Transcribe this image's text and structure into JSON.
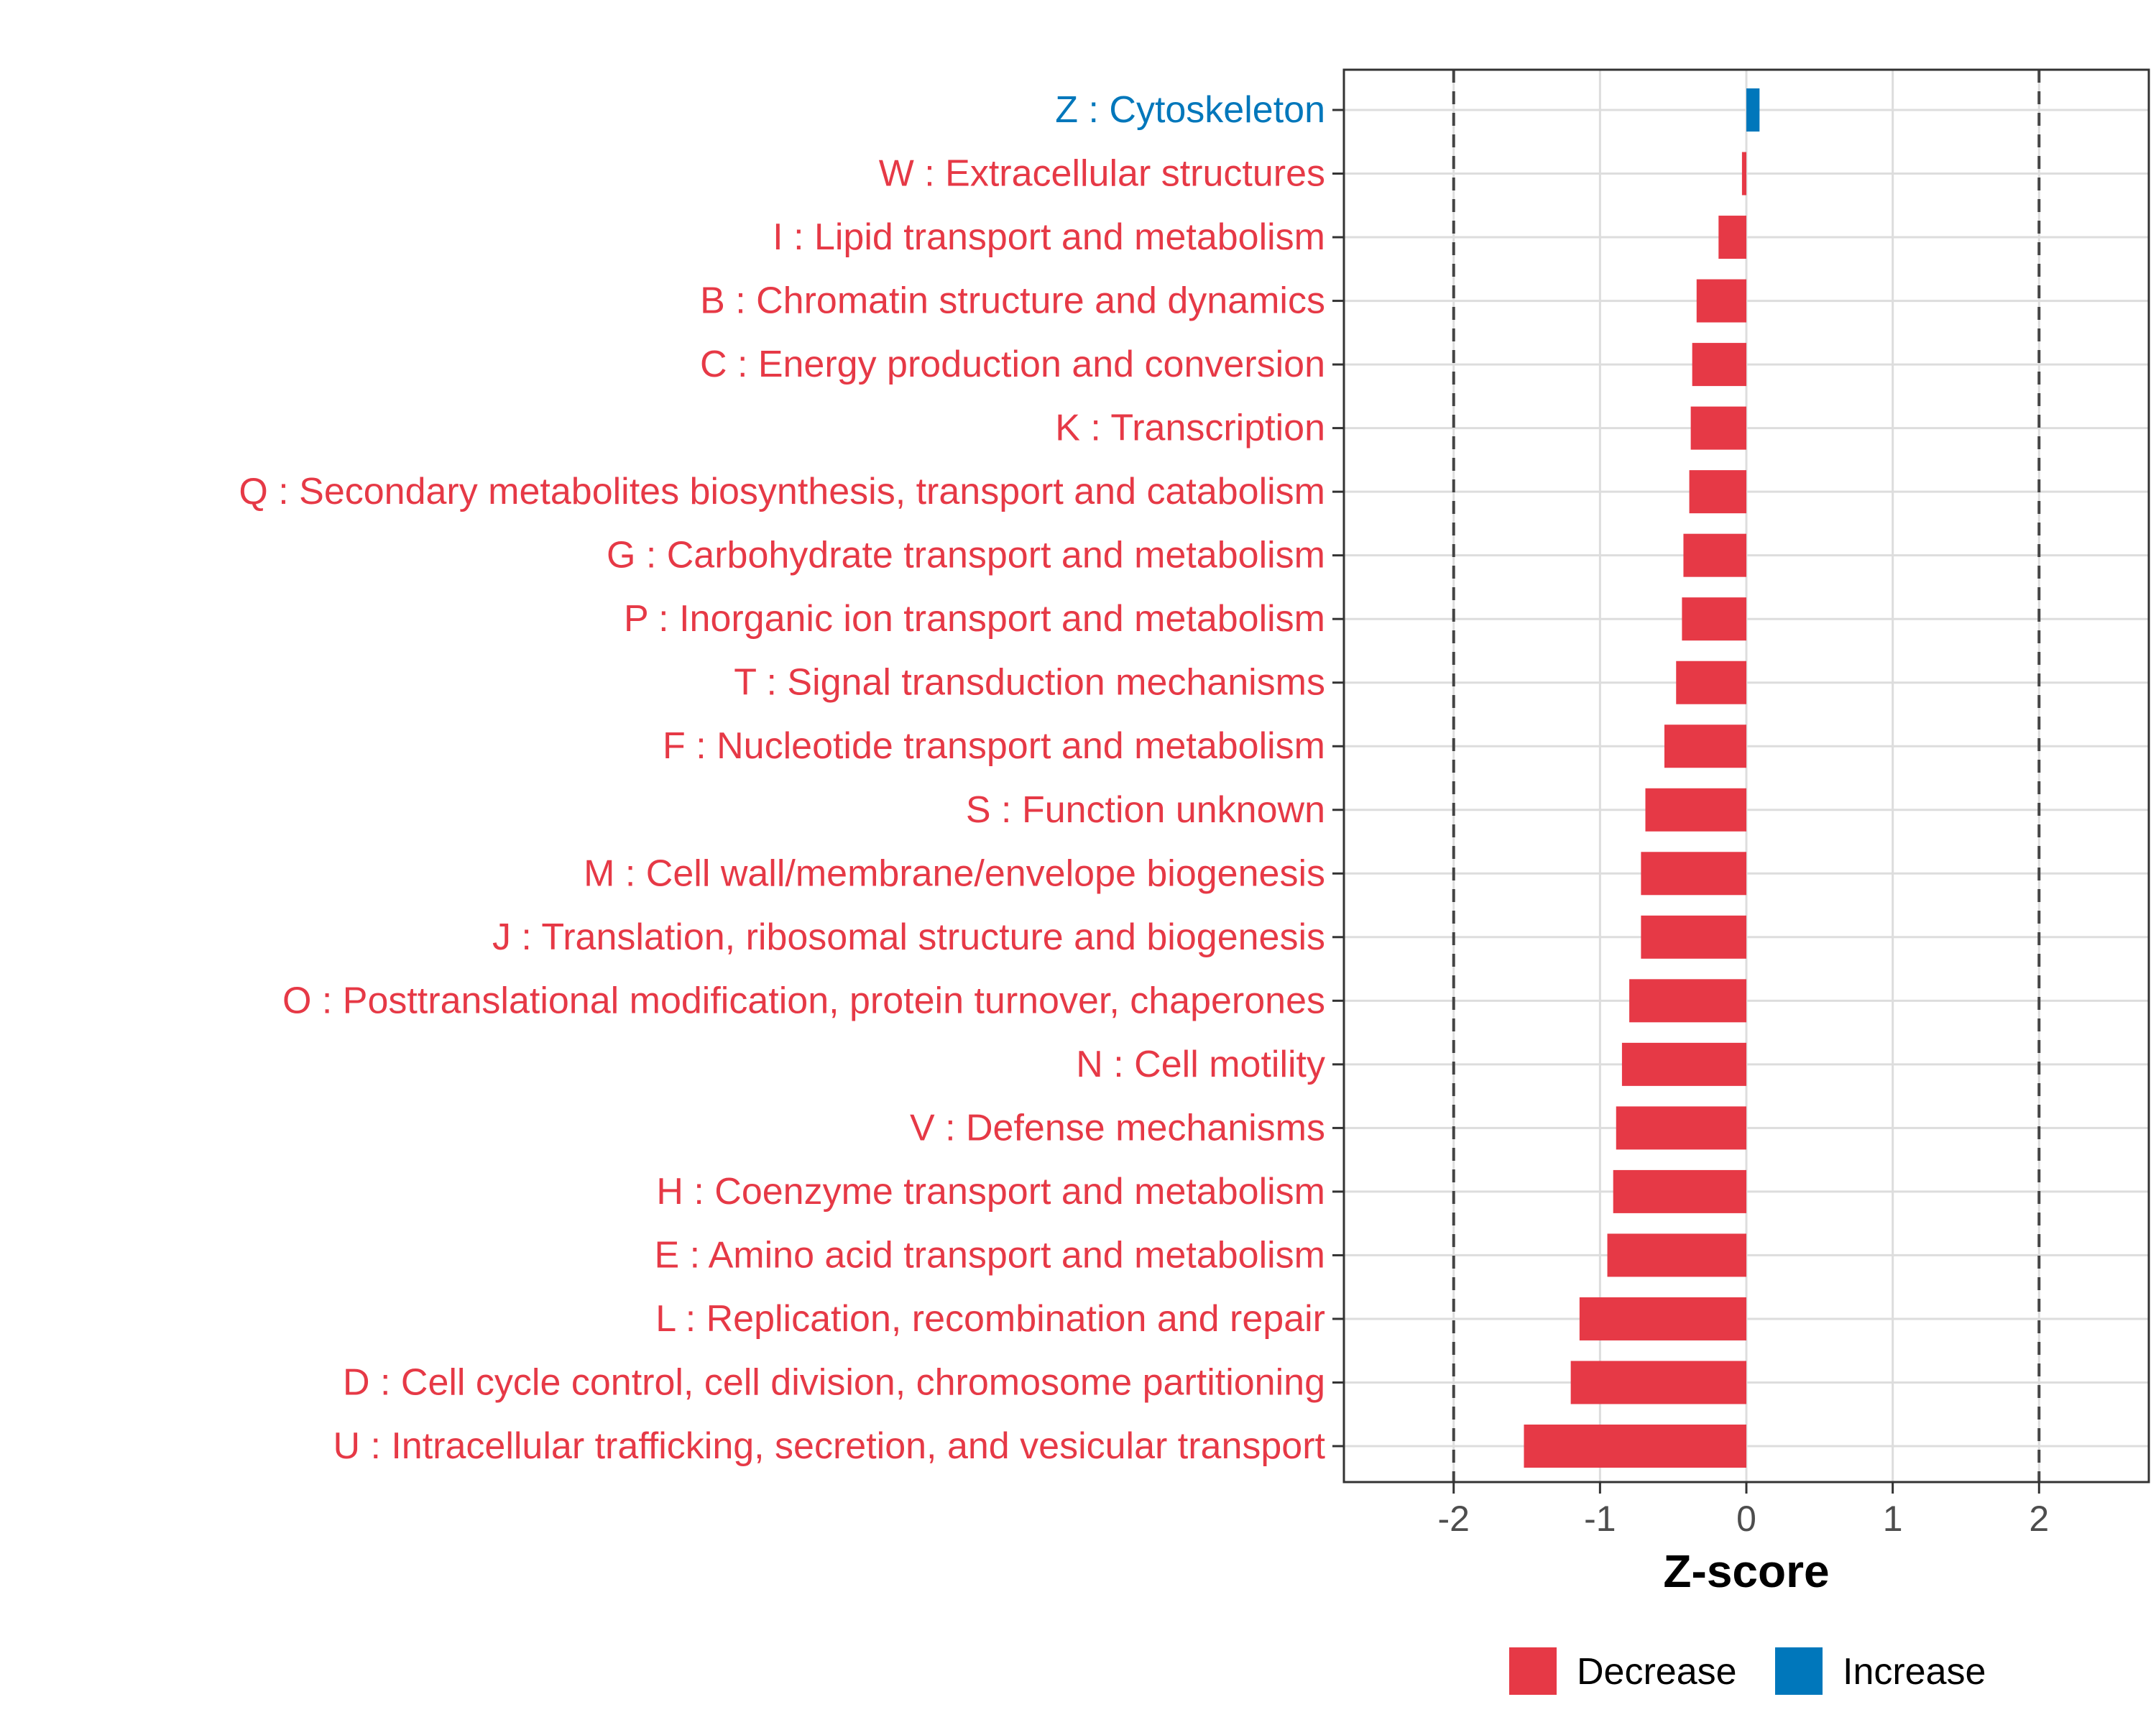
{
  "chart_data": {
    "type": "bar",
    "orientation": "horizontal",
    "xlabel": "Z-score",
    "ylabel": "",
    "xlim": [
      -2.75,
      2.75
    ],
    "xticks": [
      -2,
      -1,
      0,
      1,
      2
    ],
    "xtick_labels": [
      "-2",
      "-1",
      "0",
      "1",
      "2"
    ],
    "reference_lines": [
      -2,
      2
    ],
    "grid": true,
    "categories": [
      "Z : Cytoskeleton",
      "W : Extracellular structures",
      "I : Lipid transport and metabolism",
      "B : Chromatin structure and dynamics",
      "C : Energy production and conversion",
      "K : Transcription",
      "Q : Secondary metabolites biosynthesis, transport and catabolism",
      "G : Carbohydrate transport and metabolism",
      "P : Inorganic ion transport and metabolism",
      "T : Signal transduction mechanisms",
      "F : Nucleotide transport and metabolism",
      "S : Function unknown",
      "M : Cell wall/membrane/envelope biogenesis",
      "J : Translation, ribosomal structure and biogenesis",
      "O : Posttranslational modification, protein turnover, chaperones",
      "N : Cell motility",
      "V : Defense mechanisms",
      "H : Coenzyme transport and metabolism",
      "E : Amino acid transport and metabolism",
      "L : Replication, recombination and repair",
      "D : Cell cycle control, cell division, chromosome partitioning",
      "U : Intracellular trafficking, secretion, and vesicular transport"
    ],
    "values": [
      0.09,
      -0.03,
      -0.19,
      -0.34,
      -0.37,
      -0.38,
      -0.39,
      -0.43,
      -0.44,
      -0.48,
      -0.56,
      -0.69,
      -0.72,
      -0.72,
      -0.8,
      -0.85,
      -0.89,
      -0.91,
      -0.95,
      -1.14,
      -1.2,
      -1.52
    ],
    "groups": [
      "Increase",
      "Decrease",
      "Decrease",
      "Decrease",
      "Decrease",
      "Decrease",
      "Decrease",
      "Decrease",
      "Decrease",
      "Decrease",
      "Decrease",
      "Decrease",
      "Decrease",
      "Decrease",
      "Decrease",
      "Decrease",
      "Decrease",
      "Decrease",
      "Decrease",
      "Decrease",
      "Decrease",
      "Decrease"
    ],
    "legend": {
      "position": "bottom",
      "entries": [
        {
          "label": "Decrease",
          "color": "#E63946"
        },
        {
          "label": "Increase",
          "color": "#0077BB"
        }
      ]
    }
  }
}
